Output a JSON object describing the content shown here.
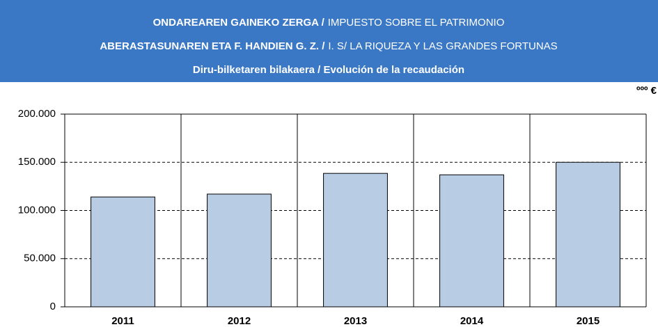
{
  "chart_data": {
    "type": "bar",
    "title_lines": [
      [
        {
          "text": "ONDAREAREN GAINEKO ZERGA /",
          "bold": true
        },
        {
          "text": "IMPUESTO SOBRE EL PATRIMONIO",
          "bold": false
        }
      ],
      [
        {
          "text": "ABERASTASUNAREN ETA F. HANDIEN G. Z. /",
          "bold": true
        },
        {
          "text": "I. S/ LA RIQUEZA Y LAS GRANDES FORTUNAS",
          "bold": false
        }
      ],
      [
        {
          "text": "Diru-bilketaren bilakaera / Evolución de la recaudación",
          "bold": true
        }
      ]
    ],
    "unit": "ººº €",
    "categories": [
      "2011",
      "2012",
      "2013",
      "2014",
      "2015"
    ],
    "values": [
      114000,
      117000,
      138500,
      137000,
      150000
    ],
    "color": "#b8cce4",
    "ylim": [
      0,
      200000
    ],
    "yticks": [
      0,
      {
        "value": 50000,
        "label": "50.000"
      },
      {
        "value": 100000,
        "label": "100.000"
      },
      {
        "value": 150000,
        "label": "150.000"
      },
      {
        "value": 200000,
        "label": "200.000"
      }
    ],
    "grid": true
  }
}
